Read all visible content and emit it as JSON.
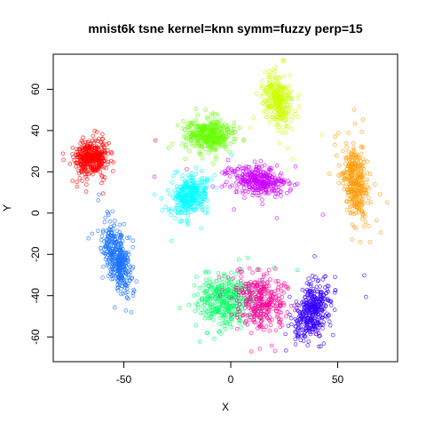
{
  "chart_data": {
    "type": "scatter",
    "title": "mnist6k tsne kernel=knn symm=fuzzy perp=15",
    "xlabel": "X",
    "ylabel": "Y",
    "xlim": [
      -83,
      78
    ],
    "ylim": [
      -72,
      77
    ],
    "xticks": [
      -50,
      0,
      50
    ],
    "yticks": [
      -60,
      -40,
      -20,
      0,
      20,
      40,
      60
    ],
    "x_tick_labels": [
      "-50",
      "0",
      "50"
    ],
    "y_tick_labels": [
      "-60",
      "-40",
      "-20",
      "0",
      "20",
      "40",
      "60"
    ],
    "grid": false,
    "legend": "none",
    "marker": "open-circle",
    "clusters": [
      {
        "color": "#ff0000",
        "center": [
          -65,
          27
        ],
        "spread": [
          7,
          8
        ],
        "angle": 0,
        "count": 380
      },
      {
        "color": "#1a72ff",
        "center": [
          -53,
          -22
        ],
        "spread": [
          5,
          15
        ],
        "angle": 0.25,
        "count": 380
      },
      {
        "color": "#66ff00",
        "center": [
          -10,
          38
        ],
        "spread": [
          10,
          7
        ],
        "angle": 0,
        "count": 360
      },
      {
        "color": "#00ffff",
        "center": [
          -19,
          8
        ],
        "spread": [
          7,
          10
        ],
        "angle": -0.35,
        "count": 320
      },
      {
        "color": "#cc00ff",
        "center": [
          13,
          16
        ],
        "spread": [
          12,
          6
        ],
        "angle": -0.2,
        "count": 330
      },
      {
        "color": "#ccff00",
        "center": [
          22,
          55
        ],
        "spread": [
          6,
          12
        ],
        "angle": 0.2,
        "count": 300
      },
      {
        "color": "#ff9900",
        "center": [
          58,
          15
        ],
        "spread": [
          5,
          17
        ],
        "angle": 0.12,
        "count": 330
      },
      {
        "color": "#00ff66",
        "center": [
          -2,
          -42
        ],
        "spread": [
          13,
          10
        ],
        "angle": 0,
        "count": 380
      },
      {
        "color": "#ff0099",
        "center": [
          14,
          -43
        ],
        "spread": [
          10,
          12
        ],
        "angle": 0.4,
        "count": 330
      },
      {
        "color": "#3300ff",
        "center": [
          38,
          -48
        ],
        "spread": [
          7,
          13
        ],
        "angle": -0.35,
        "count": 380
      }
    ]
  }
}
